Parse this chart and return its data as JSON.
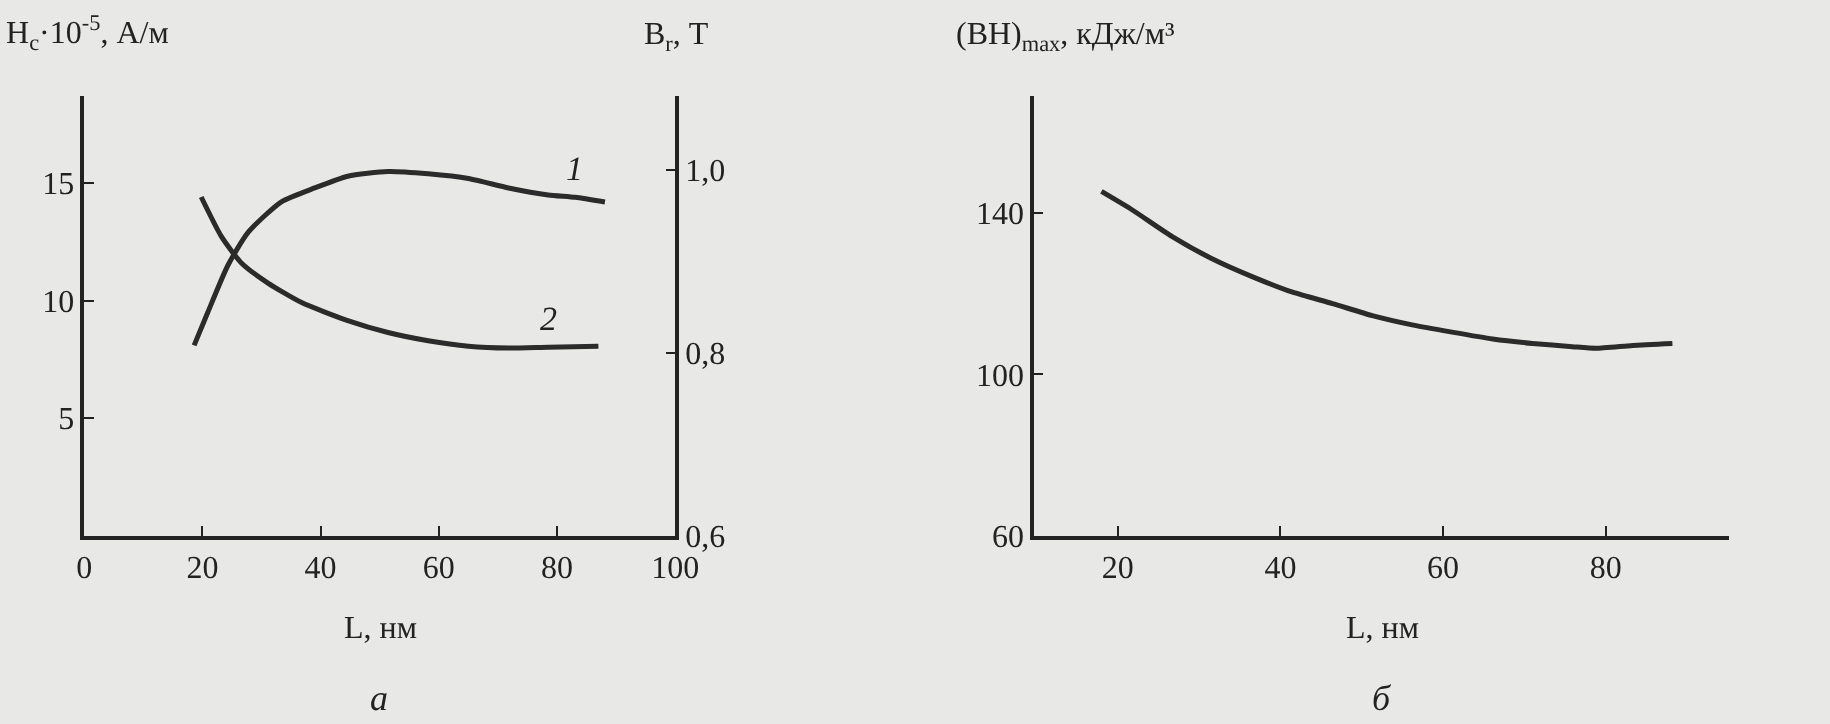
{
  "chart_data": [
    {
      "type": "line",
      "xlabel": "L, нм",
      "ylabel": "H$_{c}$·10$^{-5}$, А/м",
      "y2label": "B$_{r}$, Т",
      "annotations": [
        "а"
      ],
      "xlim": [
        0,
        100
      ],
      "xticks": [
        0,
        20,
        40,
        60,
        80,
        100
      ],
      "ylim": [
        0,
        18.7
      ],
      "yticks": [
        5,
        10,
        15
      ],
      "y2lim": [
        0.6,
        1.08
      ],
      "y2ticks": [
        {
          "value": 0.6,
          "label": "0,6"
        },
        {
          "value": 0.8,
          "label": "0,8"
        },
        {
          "value": 1.0,
          "label": "1,0"
        }
      ],
      "grid": false,
      "legend": false,
      "marker": "none",
      "line_style": "solid",
      "series": [
        {
          "name": "1",
          "color": "#2b2b2b",
          "x": [
            18.6,
            20.9,
            24.3,
            27.7,
            33.3,
            39.0,
            44.6,
            51.4,
            58.2,
            65.0,
            71.8,
            78.5,
            83.1,
            88.1
          ],
          "values": [
            8.1,
            9.5,
            11.5,
            12.9,
            14.2,
            14.8,
            15.3,
            15.5,
            15.4,
            15.2,
            14.8,
            14.5,
            14.4,
            14.2
          ]
        },
        {
          "name": "2",
          "color": "#2b2b2b",
          "axis": "y2",
          "x": [
            19.8,
            23.2,
            26.6,
            31.1,
            36.7,
            44.6,
            51.4,
            58.2,
            65.0,
            71.8,
            78.5,
            87.0
          ],
          "values": [
            0.97,
            0.927,
            0.898,
            0.876,
            0.855,
            0.835,
            0.822,
            0.813,
            0.807,
            0.805,
            0.806,
            0.807
          ]
        }
      ]
    },
    {
      "type": "line",
      "xlabel": "L, нм",
      "ylabel": "(BH)$_{max}$, кДж/м³",
      "annotations": [
        "б"
      ],
      "xlim": [
        9.7,
        95.2
      ],
      "xticks": [
        20,
        40,
        60,
        80
      ],
      "ylim": [
        60,
        169
      ],
      "yticks": [
        60,
        100,
        140
      ],
      "grid": false,
      "legend": false,
      "marker": "none",
      "line_style": "solid",
      "series": [
        {
          "color": "#2b2b2b",
          "x": [
            18.0,
            21.8,
            26.7,
            31.6,
            36.6,
            41.5,
            46.4,
            51.3,
            56.2,
            61.1,
            66.1,
            71.0,
            75.9,
            78.8,
            83.3,
            88.2
          ],
          "values": [
            145.4,
            140.8,
            134.2,
            128.7,
            124.2,
            120.4,
            117.6,
            114.6,
            112.3,
            110.5,
            108.8,
            107.7,
            106.9,
            106.5,
            107.2,
            107.7
          ]
        }
      ]
    }
  ]
}
